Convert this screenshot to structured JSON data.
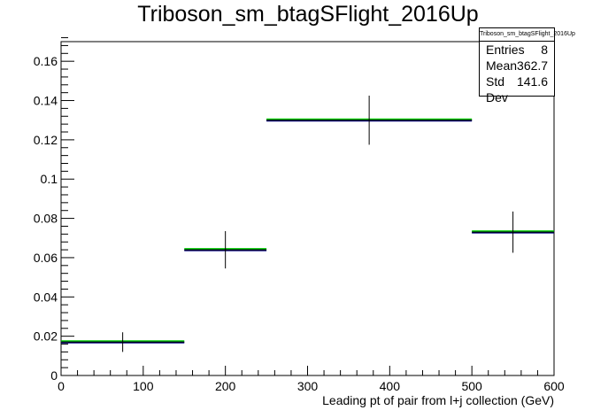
{
  "chart_data": {
    "type": "histogram",
    "title": "Triboson_sm_btagSFlight_2016Up",
    "xlabel": "Leading pt of pair from l+j collection (GeV)",
    "ylabel": "",
    "xlim": [
      0,
      600
    ],
    "ylim": [
      0,
      0.17
    ],
    "x_ticks": [
      0,
      100,
      200,
      300,
      400,
      500,
      600
    ],
    "y_ticks": [
      0,
      0.02,
      0.04,
      0.06,
      0.08,
      0.1,
      0.12,
      0.14,
      0.16
    ],
    "y_tick_labels": [
      "0",
      "0.02",
      "0.04",
      "0.06",
      "0.08",
      "0.1",
      "0.12",
      "0.14",
      "0.16"
    ],
    "bins": [
      {
        "low": 0,
        "high": 150,
        "value": 0.017,
        "error": 0.005
      },
      {
        "low": 150,
        "high": 250,
        "value": 0.064,
        "error": 0.0095
      },
      {
        "low": 250,
        "high": 500,
        "value": 0.13,
        "error": 0.0125
      },
      {
        "low": 500,
        "high": 600,
        "value": 0.073,
        "error": 0.0105
      }
    ],
    "series": [
      {
        "style": "errorbar",
        "color": "#000000"
      },
      {
        "style": "step",
        "color": "#00cc00"
      },
      {
        "style": "step",
        "color": "#000080"
      }
    ],
    "stats_box": {
      "title": "Triboson_sm_btagSFlight_2016Up",
      "rows": [
        {
          "label": "Entries",
          "value": "8"
        },
        {
          "label": "Mean",
          "value": "362.7"
        },
        {
          "label": "Std Dev",
          "value": "141.6"
        }
      ]
    }
  }
}
